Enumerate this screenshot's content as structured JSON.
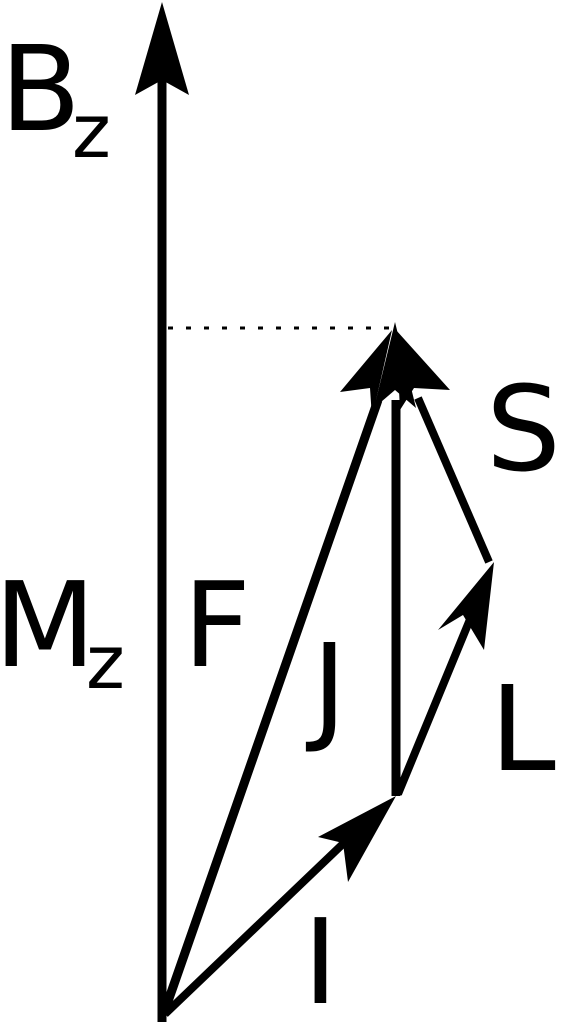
{
  "diagram": {
    "colors": {
      "background": "#ffffff",
      "ink": "#000000"
    },
    "axis": {
      "label_main": "B",
      "label_sub": "z"
    },
    "projection": {
      "label_main": "M",
      "label_sub": "z"
    },
    "vectors": {
      "F": "F",
      "J": "J",
      "S": "S",
      "L": "L",
      "I": "I"
    }
  }
}
